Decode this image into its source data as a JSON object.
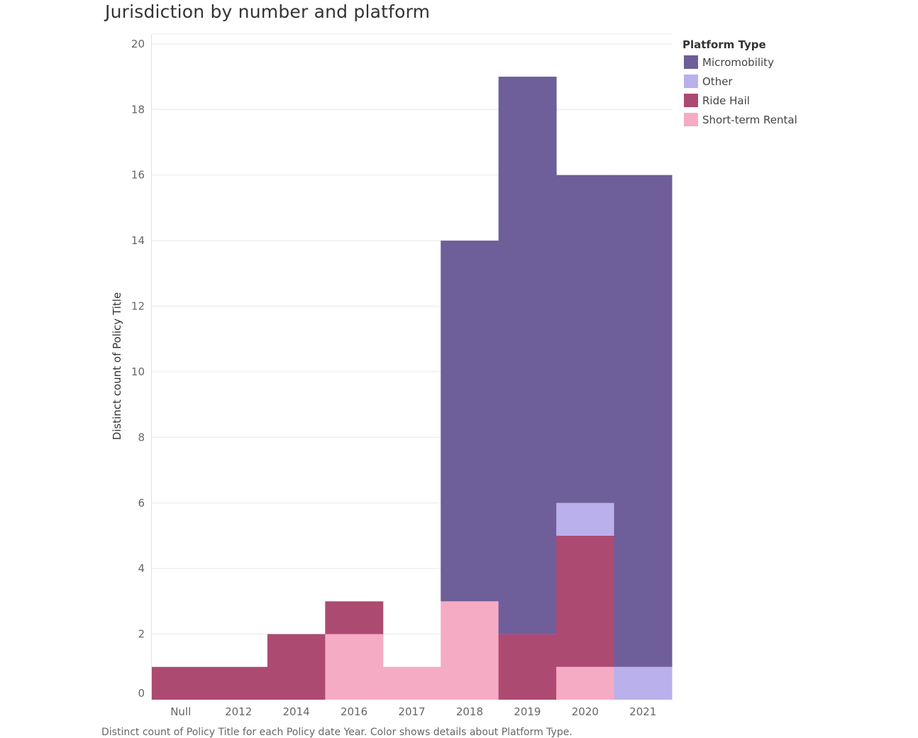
{
  "chart_data": {
    "type": "bar",
    "stacked": true,
    "title": "Jurisdiction by number and platform",
    "ylabel": "Distinct count of Policy Title",
    "xlabel": "",
    "categories": [
      "Null",
      "2012",
      "2014",
      "2016",
      "2017",
      "2018",
      "2019",
      "2020",
      "2021"
    ],
    "ylim": [
      0,
      20
    ],
    "yticks": [
      0,
      2,
      4,
      6,
      8,
      10,
      12,
      14,
      16,
      18,
      20
    ],
    "grid": true,
    "legend": {
      "title": "Platform Type",
      "placement": "right"
    },
    "series": [
      {
        "name": "Short-term Rental",
        "color": "#f6abc5",
        "values": [
          0,
          0,
          0,
          2,
          1,
          3,
          0,
          1,
          0
        ]
      },
      {
        "name": "Ride Hail",
        "color": "#ad4a72",
        "values": [
          1,
          1,
          2,
          1,
          0,
          0,
          2,
          4,
          0
        ]
      },
      {
        "name": "Other",
        "color": "#b9b0ec",
        "values": [
          0,
          0,
          0,
          0,
          0,
          0,
          0,
          1,
          1
        ]
      },
      {
        "name": "Micromobility",
        "color": "#6e5e9a",
        "values": [
          0,
          0,
          0,
          0,
          0,
          11,
          17,
          10,
          15
        ]
      }
    ],
    "legend_order": [
      "Micromobility",
      "Other",
      "Ride Hail",
      "Short-term Rental"
    ]
  },
  "footnote": "Distinct count of Policy Title for each Policy date Year. Color shows details about Platform Type."
}
